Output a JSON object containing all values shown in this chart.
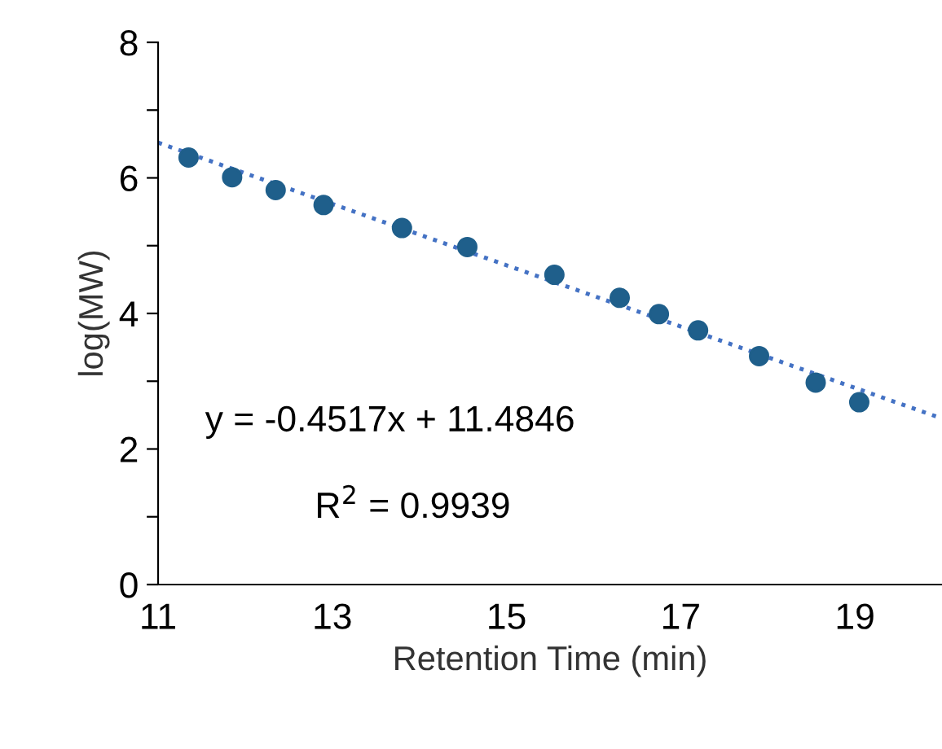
{
  "chart_data": {
    "type": "scatter",
    "xlabel": "Retention Time (min)",
    "ylabel": "log(MW)",
    "xlim": [
      11,
      20
    ],
    "ylim": [
      0,
      8
    ],
    "xticks": [
      11,
      13,
      15,
      17,
      19
    ],
    "yticks": [
      0,
      {
        "value": 1,
        "label": null
      },
      2,
      {
        "value": 3,
        "label": null
      },
      4,
      {
        "value": 5,
        "label": null
      },
      6,
      {
        "value": 7,
        "label": null
      },
      8
    ],
    "grid": false,
    "legend": false,
    "marker": "circle",
    "series": [
      {
        "color": "#1f5f8b",
        "x": [
          11.35,
          11.85,
          12.35,
          12.9,
          13.8,
          14.55,
          15.55,
          16.3,
          16.75,
          17.2,
          17.9,
          18.55,
          19.05
        ],
        "values": [
          6.3,
          6.01,
          5.82,
          5.6,
          5.26,
          4.98,
          4.57,
          4.23,
          3.99,
          3.75,
          3.37,
          2.98,
          2.69
        ]
      },
      {
        "type": "line",
        "color": "#4472c4",
        "line_style": "dotted",
        "marker": "none",
        "x": [
          11,
          20
        ],
        "values": [
          6.52,
          2.45
        ]
      }
    ],
    "annotations": [
      "y = -0.4517x + 11.4846",
      "R$^{2}$ = 0.9939"
    ]
  }
}
